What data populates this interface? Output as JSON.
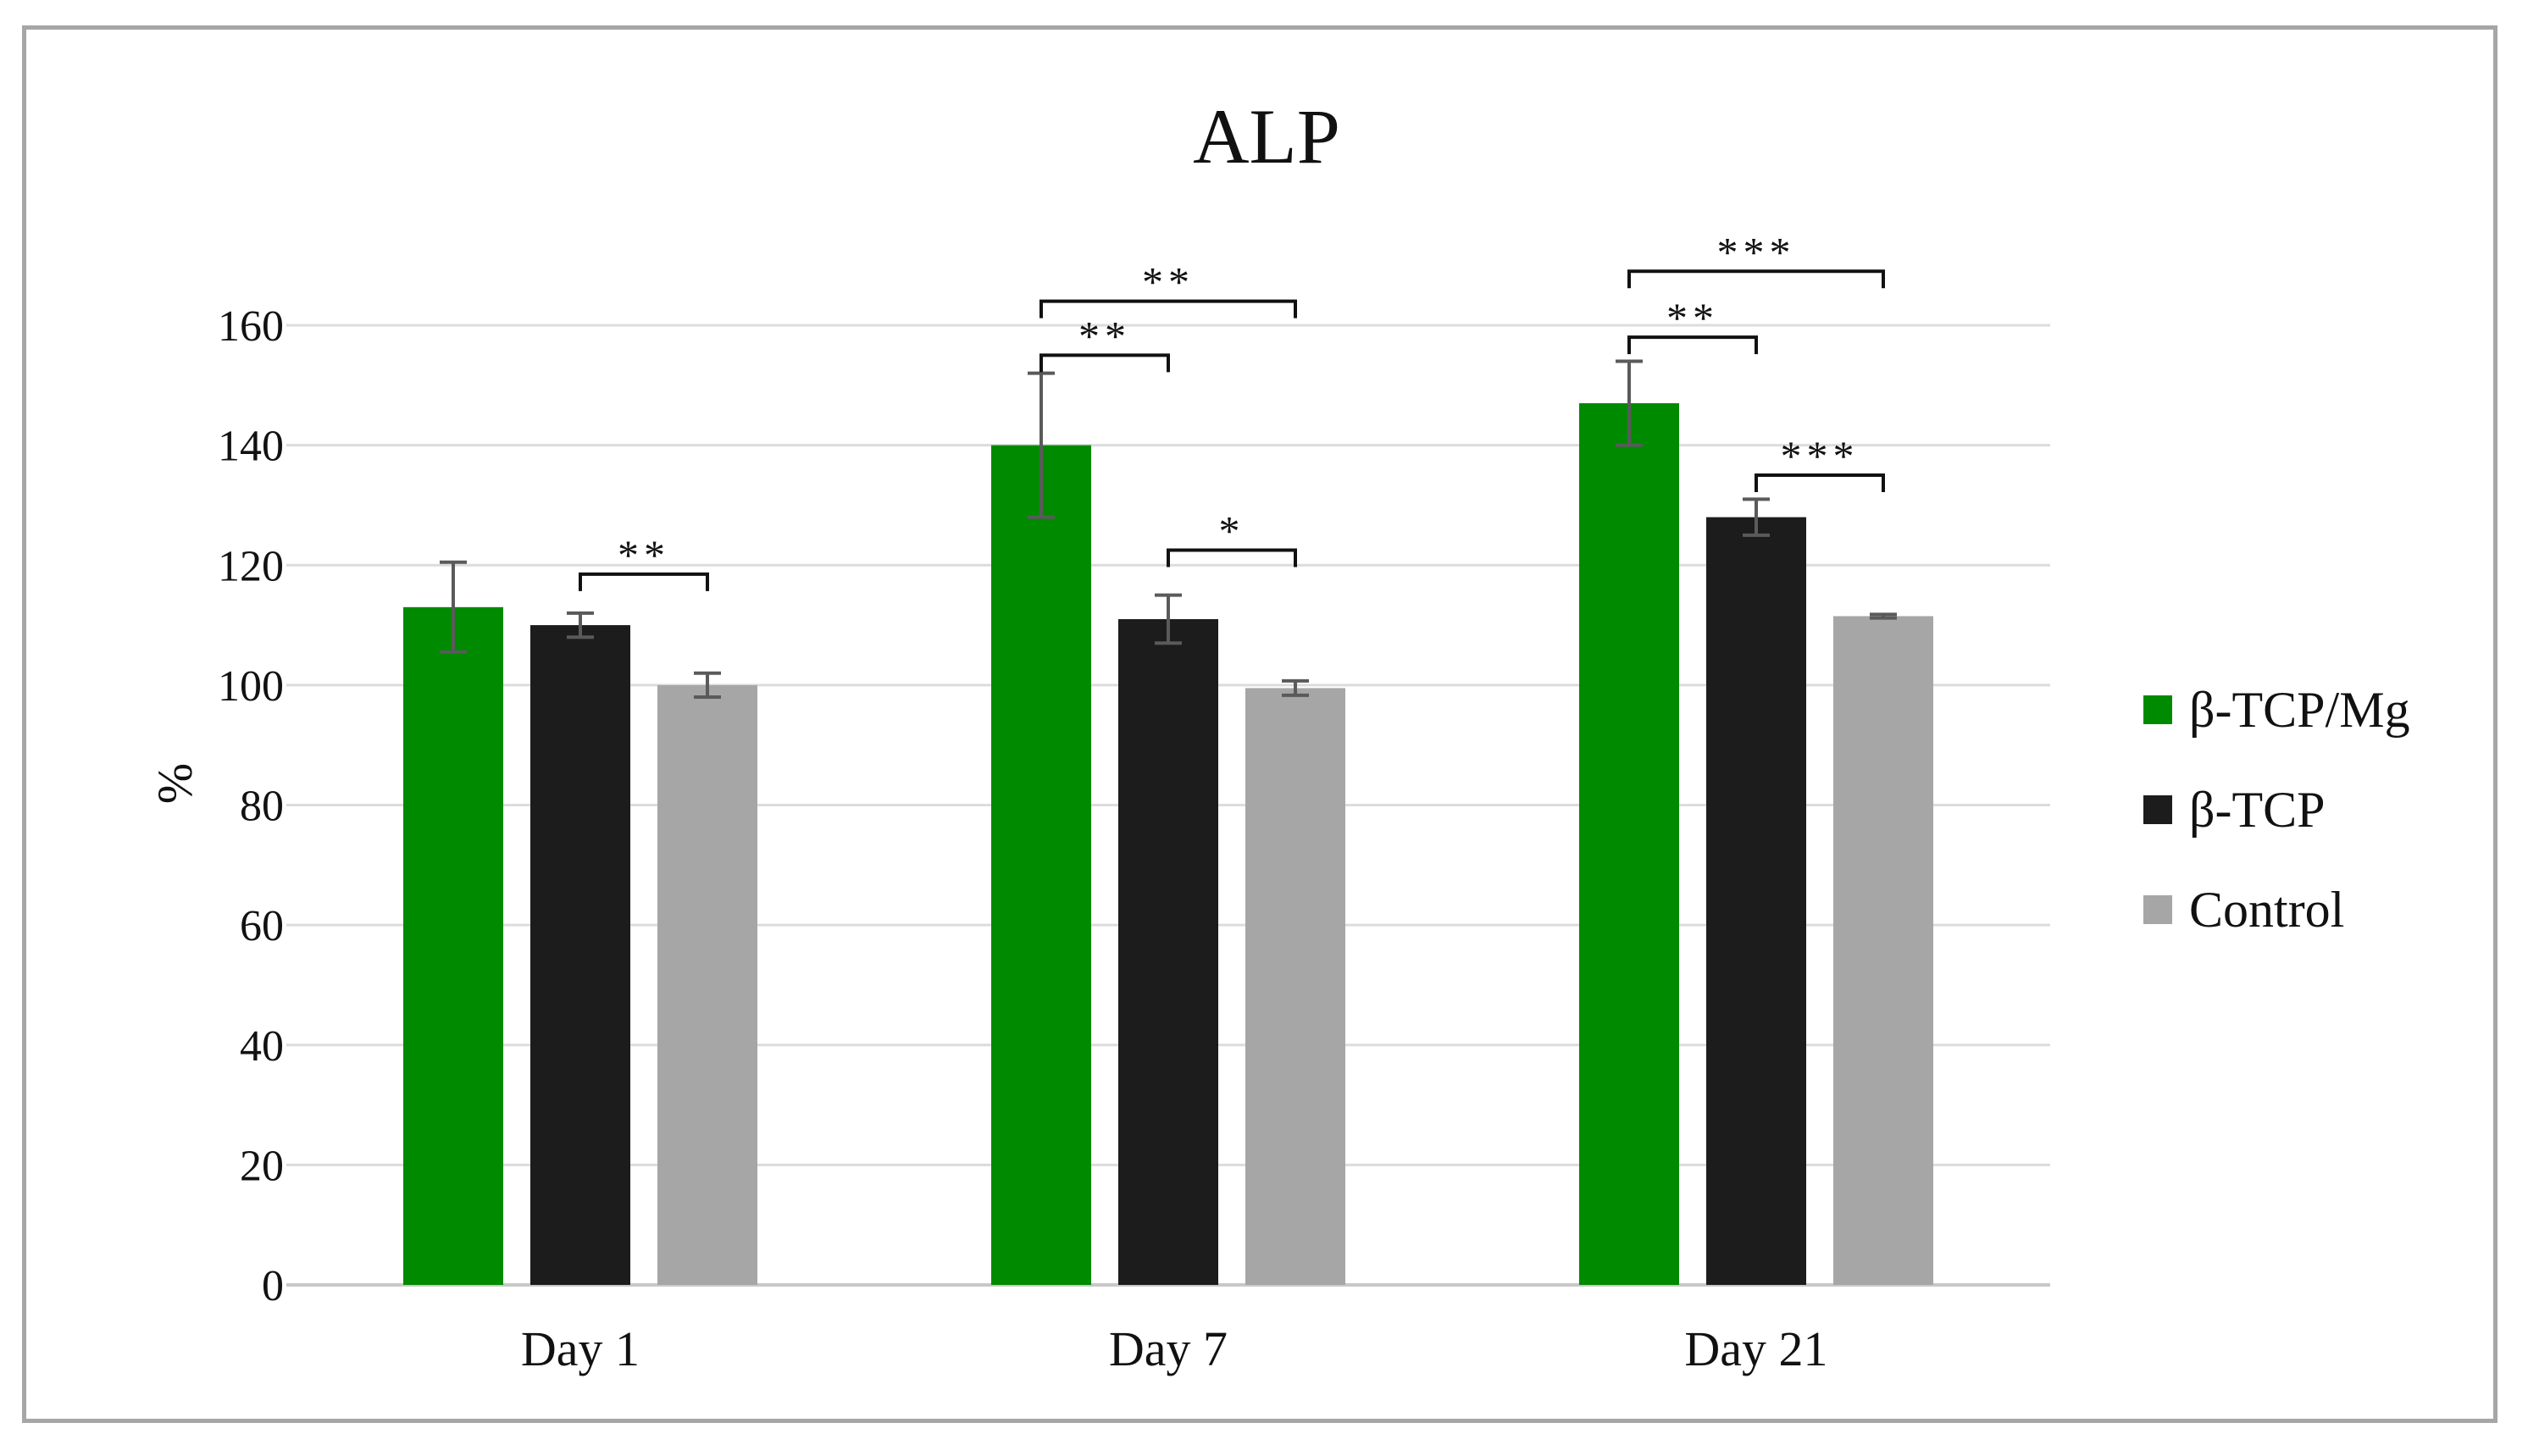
{
  "chart_data": {
    "type": "bar",
    "title": "ALP",
    "xlabel": "",
    "ylabel": "%",
    "ylim": [
      0,
      160
    ],
    "yticks": [
      0,
      20,
      40,
      60,
      80,
      100,
      120,
      140,
      160
    ],
    "grid": true,
    "legend_position": "right",
    "categories": [
      "Day 1",
      "Day 7",
      "Day 21"
    ],
    "series": [
      {
        "name": "β-TCP/Mg",
        "color": "#008a00",
        "values": [
          113,
          140,
          147
        ],
        "errors": [
          7.5,
          12,
          7
        ]
      },
      {
        "name": "β-TCP",
        "color": "#1c1c1c",
        "values": [
          110,
          111,
          128
        ],
        "errors": [
          2,
          4,
          3
        ]
      },
      {
        "name": "Control",
        "color": "#a6a6a6",
        "values": [
          100,
          99.5,
          111.5
        ],
        "errors": [
          2,
          1.2,
          0.3
        ]
      }
    ],
    "annotations": [
      {
        "category": "Day 1",
        "from_series": 1,
        "to_series": 2,
        "label": "**",
        "y": 118.5
      },
      {
        "category": "Day 7",
        "from_series": 0,
        "to_series": 2,
        "label": "**",
        "y": 164
      },
      {
        "category": "Day 7",
        "from_series": 0,
        "to_series": 1,
        "label": "**",
        "y": 155
      },
      {
        "category": "Day 7",
        "from_series": 1,
        "to_series": 2,
        "label": "*",
        "y": 122.5
      },
      {
        "category": "Day 21",
        "from_series": 0,
        "to_series": 2,
        "label": "***",
        "y": 169
      },
      {
        "category": "Day 21",
        "from_series": 0,
        "to_series": 1,
        "label": "**",
        "y": 158
      },
      {
        "category": "Day 21",
        "from_series": 1,
        "to_series": 2,
        "label": "***",
        "y": 135
      }
    ]
  }
}
